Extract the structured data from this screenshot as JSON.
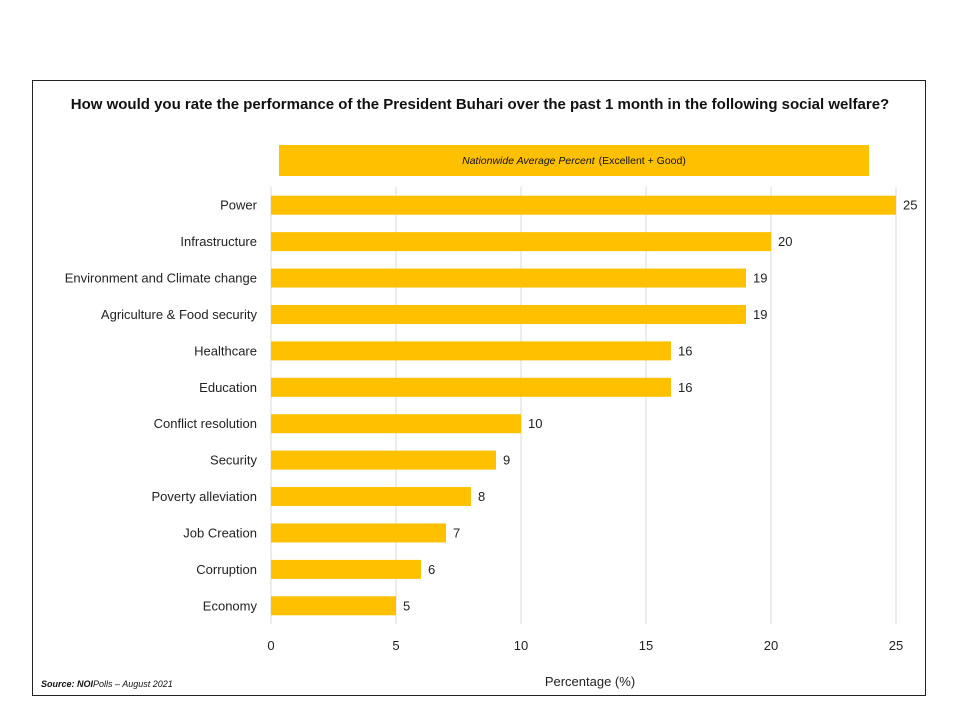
{
  "chart_data": {
    "type": "bar",
    "orientation": "horizontal",
    "title": "How would you rate the performance of the President Buhari over the past 1 month in the following social welfare?",
    "subtitle_italic": "Nationwide Average Percent",
    "subtitle_rest": "(Excellent + Good)",
    "categories": [
      "Power",
      "Infrastructure",
      "Environment and Climate change",
      "Agriculture & Food security",
      "Healthcare",
      "Education",
      "Conflict resolution",
      "Security",
      "Poverty alleviation",
      "Job Creation",
      "Corruption",
      "Economy"
    ],
    "values": [
      25,
      20,
      19,
      19,
      16,
      16,
      10,
      9,
      8,
      7,
      6,
      5
    ],
    "xlabel": "Percentage (%)",
    "ylabel": "",
    "xlim": [
      0,
      25
    ],
    "xticks": [
      0,
      5,
      10,
      15,
      20,
      25
    ],
    "grid": true,
    "bar_color": "#FFC000",
    "legend": "none"
  },
  "source": {
    "bold": "Source: NOI",
    "rest": "Polls – August  2021"
  }
}
